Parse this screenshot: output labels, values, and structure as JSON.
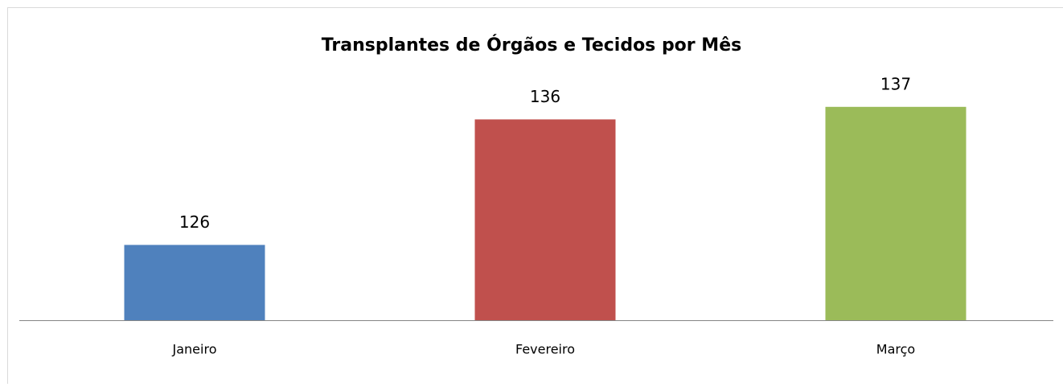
{
  "chart_data": {
    "type": "bar",
    "title": "Transplantes de Órgãos e Tecidos por Mês",
    "categories": [
      "Janeiro",
      "Fevereiro",
      "Março"
    ],
    "values": [
      126,
      136,
      137
    ],
    "colors": [
      "#4f81bd",
      "#c0504d",
      "#9bbb59"
    ],
    "ylim": [
      120,
      140
    ],
    "grid": false
  }
}
